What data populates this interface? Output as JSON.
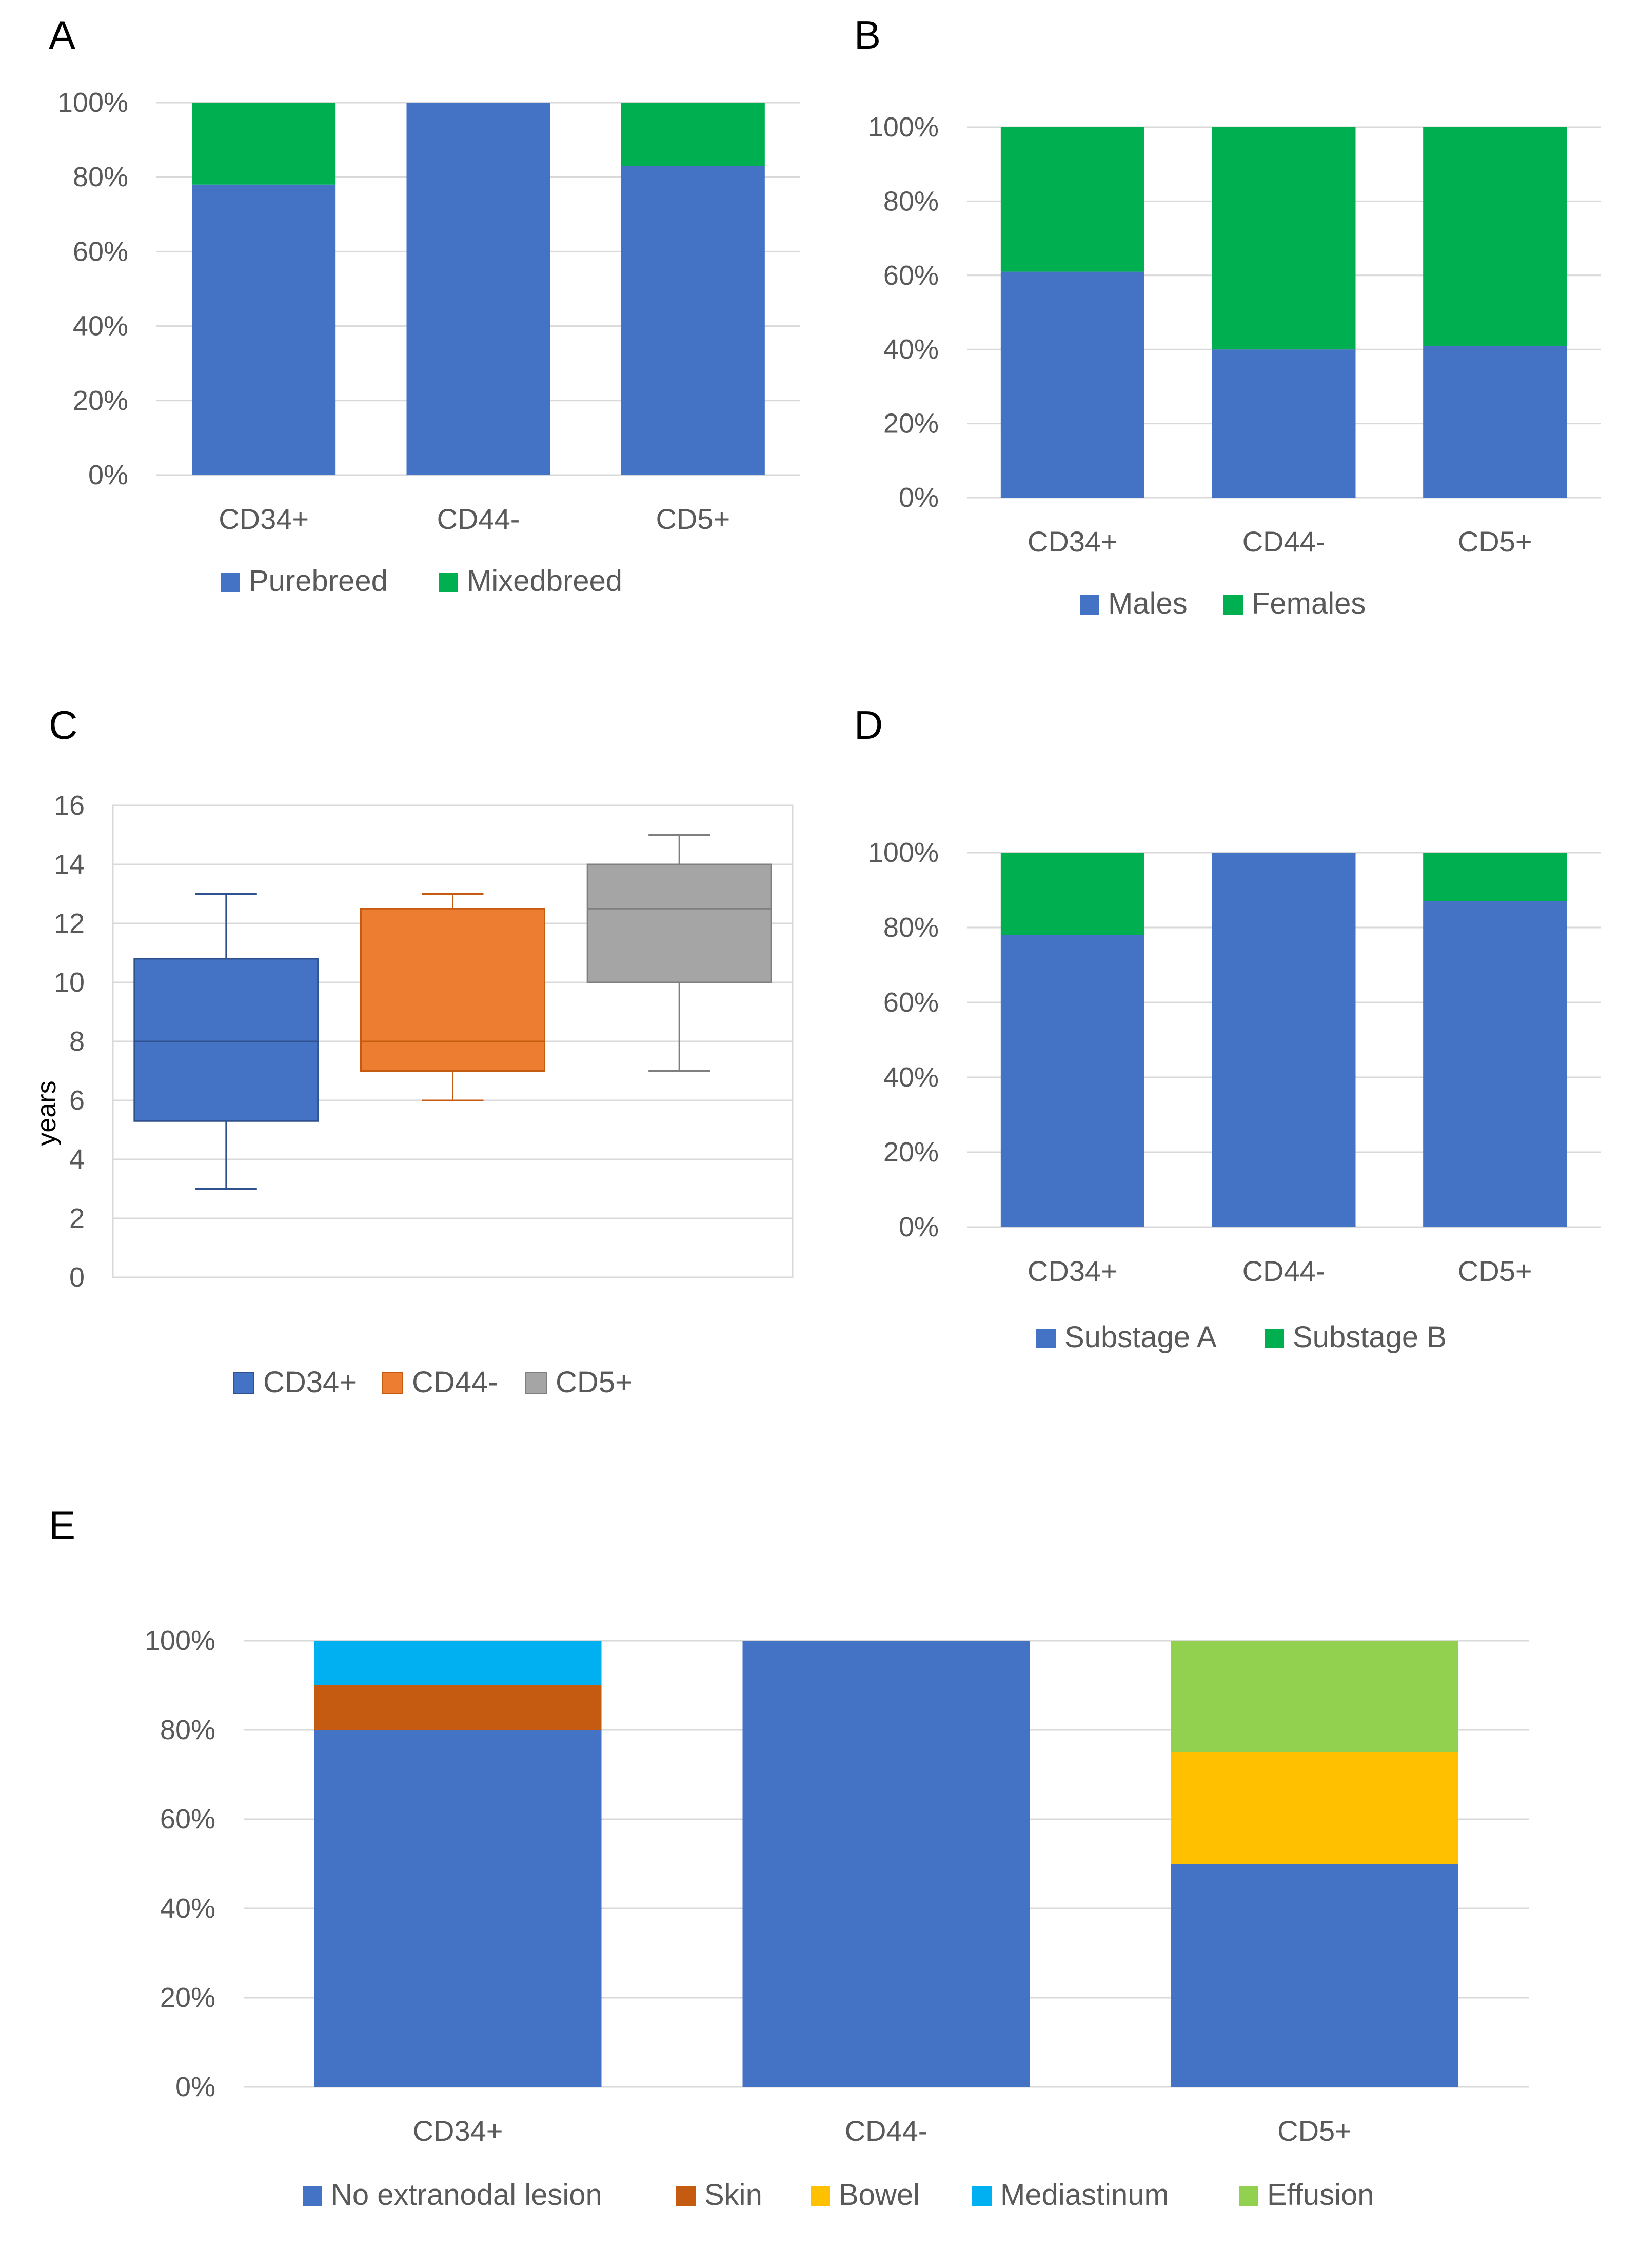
{
  "colors": {
    "blue": "#4472C4",
    "green": "#00B050",
    "orange": "#ED7D31",
    "gray": "#A5A5A5",
    "brown": "#C55A11",
    "yellow": "#FFC000",
    "cyan": "#00B0F0",
    "lightgreen": "#92D050",
    "grid": "#D9D9D9",
    "text": "#595959"
  },
  "chart_data": [
    {
      "panel": "A",
      "type": "bar",
      "stacked": true,
      "categories": [
        "CD34+",
        "CD44-",
        "CD5+"
      ],
      "series": [
        {
          "name": "Purebreed",
          "values": [
            78,
            100,
            83
          ]
        },
        {
          "name": "Mixedbreed",
          "values": [
            22,
            0,
            17
          ]
        }
      ],
      "ylim": [
        0,
        100
      ],
      "yticks": [
        "0%",
        "20%",
        "40%",
        "60%",
        "80%",
        "100%"
      ],
      "legend": "bottom"
    },
    {
      "panel": "B",
      "type": "bar",
      "stacked": true,
      "categories": [
        "CD34+",
        "CD44-",
        "CD5+"
      ],
      "series": [
        {
          "name": "Males",
          "values": [
            61,
            40,
            41
          ]
        },
        {
          "name": "Females",
          "values": [
            39,
            60,
            59
          ]
        }
      ],
      "ylim": [
        0,
        100
      ],
      "yticks": [
        "0%",
        "20%",
        "40%",
        "60%",
        "80%",
        "100%"
      ],
      "legend": "bottom"
    },
    {
      "panel": "C",
      "type": "box",
      "ylabel": "years",
      "ylim": [
        0,
        16
      ],
      "yticks": [
        "0",
        "2",
        "4",
        "6",
        "8",
        "10",
        "12",
        "14",
        "16"
      ],
      "boxes": [
        {
          "name": "CD34+",
          "min": 3,
          "q1": 5.3,
          "median": 8,
          "q3": 10.8,
          "max": 13
        },
        {
          "name": "CD44-",
          "min": 6,
          "q1": 7,
          "median": 8,
          "q3": 12.5,
          "max": 13
        },
        {
          "name": "CD5+",
          "min": 7,
          "q1": 10,
          "median": 12.5,
          "q3": 14,
          "max": 15
        }
      ],
      "legend": "bottom"
    },
    {
      "panel": "D",
      "type": "bar",
      "stacked": true,
      "categories": [
        "CD34+",
        "CD44-",
        "CD5+"
      ],
      "series": [
        {
          "name": "Substage A",
          "values": [
            78,
            100,
            87
          ]
        },
        {
          "name": "Substage B",
          "values": [
            22,
            0,
            13
          ]
        }
      ],
      "ylim": [
        0,
        100
      ],
      "yticks": [
        "0%",
        "20%",
        "40%",
        "60%",
        "80%",
        "100%"
      ],
      "legend": "bottom"
    },
    {
      "panel": "E",
      "type": "bar",
      "stacked": true,
      "categories": [
        "CD34+",
        "CD44-",
        "CD5+"
      ],
      "series": [
        {
          "name": "No extranodal lesion",
          "values": [
            80,
            100,
            50
          ]
        },
        {
          "name": "Skin",
          "values": [
            10,
            0,
            0
          ]
        },
        {
          "name": "Bowel",
          "values": [
            0,
            0,
            25
          ]
        },
        {
          "name": "Mediastinum",
          "values": [
            10,
            0,
            0
          ]
        },
        {
          "name": "Effusion",
          "values": [
            0,
            0,
            25
          ]
        }
      ],
      "ylim": [
        0,
        100
      ],
      "yticks": [
        "0%",
        "20%",
        "40%",
        "60%",
        "80%",
        "100%"
      ],
      "legend": "bottom"
    }
  ]
}
